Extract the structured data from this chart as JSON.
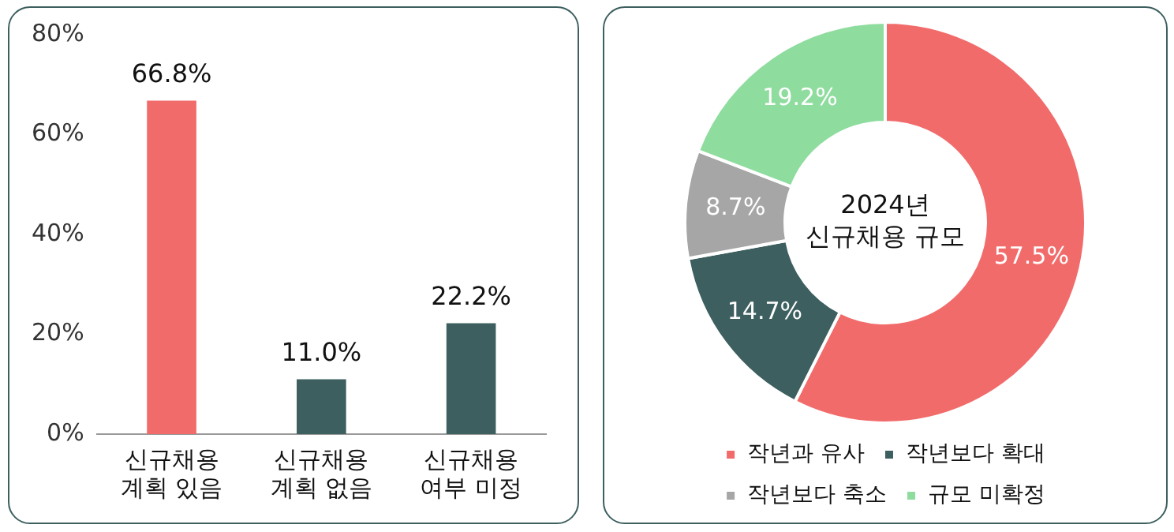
{
  "chart_data": [
    {
      "type": "bar",
      "categories": [
        "신규채용 계획 있음",
        "신규채용 계획 없음",
        "신규채용 여부 미정"
      ],
      "values": [
        66.8,
        11.0,
        22.2
      ],
      "colors": [
        "#f26b6b",
        "#3d5f5f",
        "#3d5f5f"
      ],
      "value_labels": [
        "66.8%",
        "11.0%",
        "22.2%"
      ],
      "ylim": [
        0,
        80
      ],
      "yticks": [
        {
          "value": 0,
          "label": "0%"
        },
        {
          "value": 20,
          "label": "20%"
        },
        {
          "value": 40,
          "label": "40%"
        },
        {
          "value": 60,
          "label": "60%"
        },
        {
          "value": 80,
          "label": "80%"
        }
      ],
      "grid": false,
      "legend": false
    },
    {
      "type": "donut",
      "title": "2024년 신규채용 규모",
      "categories": [
        "작년과 유사",
        "작년보다 확대",
        "작년보다 축소",
        "규모 미확정"
      ],
      "values": [
        57.5,
        14.7,
        8.7,
        19.2
      ],
      "colors": [
        "#f26b6b",
        "#3d5f5f",
        "#a6a6a6",
        "#8fdc9f"
      ],
      "value_labels": [
        "57.5%",
        "14.7%",
        "8.7%",
        "19.2%"
      ],
      "legend": "bottom"
    }
  ]
}
